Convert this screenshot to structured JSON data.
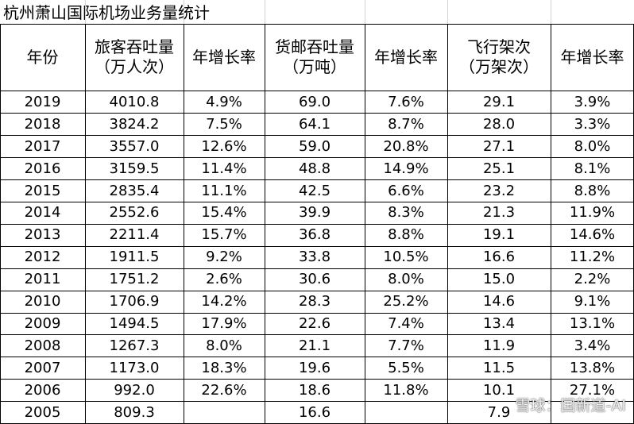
{
  "title": "杭州萧山国际机场业务量统计",
  "table": {
    "headers": [
      [
        "年份"
      ],
      [
        "旅客吞吐量",
        "（万人次）"
      ],
      [
        "年增长率"
      ],
      [
        "货邮吞吐量",
        "（万吨）"
      ],
      [
        "年增长率"
      ],
      [
        "飞行架次",
        "（万架次）"
      ],
      [
        "年增长率"
      ]
    ],
    "rows": [
      [
        "2019",
        "4010.8",
        "4.9%",
        "69.0",
        "7.6%",
        "29.1",
        "3.9%"
      ],
      [
        "2018",
        "3824.2",
        "7.5%",
        "64.1",
        "8.7%",
        "28.0",
        "3.3%"
      ],
      [
        "2017",
        "3557.0",
        "12.6%",
        "59.0",
        "20.8%",
        "27.1",
        "8.0%"
      ],
      [
        "2016",
        "3159.5",
        "11.4%",
        "48.8",
        "14.9%",
        "25.1",
        "8.1%"
      ],
      [
        "2015",
        "2835.4",
        "11.1%",
        "42.5",
        "6.6%",
        "23.2",
        "8.8%"
      ],
      [
        "2014",
        "2552.6",
        "15.4%",
        "39.9",
        "8.3%",
        "21.3",
        "11.9%"
      ],
      [
        "2013",
        "2211.4",
        "15.7%",
        "36.8",
        "8.8%",
        "19.1",
        "14.6%"
      ],
      [
        "2012",
        "1911.5",
        "9.2%",
        "33.8",
        "10.5%",
        "16.6",
        "11.2%"
      ],
      [
        "2011",
        "1751.2",
        "2.6%",
        "30.6",
        "8.0%",
        "15.0",
        "2.2%"
      ],
      [
        "2010",
        "1706.9",
        "14.2%",
        "28.3",
        "25.2%",
        "14.6",
        "9.1%"
      ],
      [
        "2009",
        "1494.5",
        "17.9%",
        "22.6",
        "7.4%",
        "13.4",
        "13.1%"
      ],
      [
        "2008",
        "1267.3",
        "8.0%",
        "21.1",
        "7.7%",
        "11.9",
        "3.4%"
      ],
      [
        "2007",
        "1173.0",
        "18.3%",
        "19.6",
        "5.5%",
        "11.5",
        "13.8%"
      ],
      [
        "2006",
        "992.0",
        "22.6%",
        "18.6",
        "11.8%",
        "10.1",
        "27.1%"
      ],
      [
        "2005",
        "809.3",
        null,
        "16.6",
        null,
        "7.9",
        null
      ]
    ]
  },
  "watermark": "雪球：国新道-AI"
}
